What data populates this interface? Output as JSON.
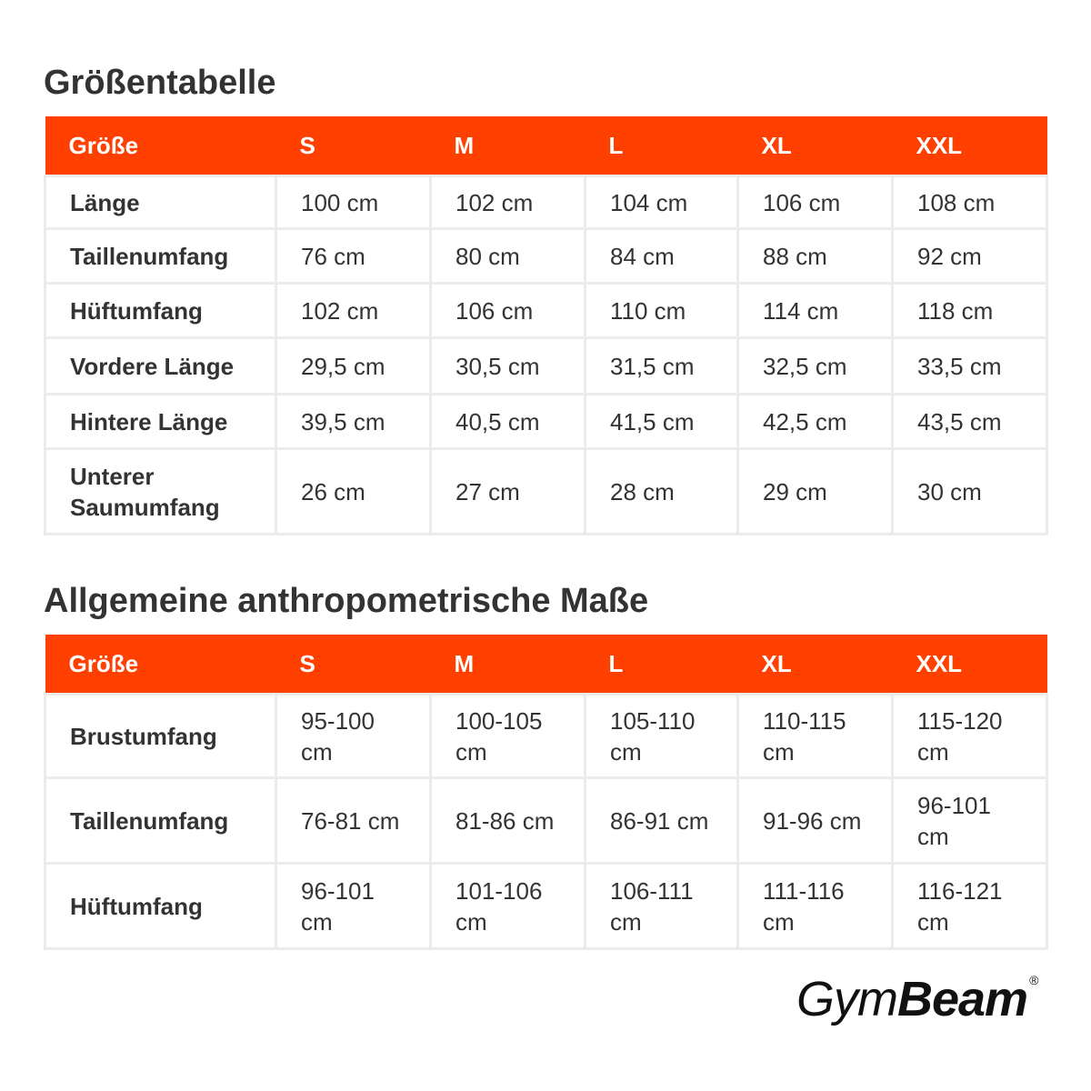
{
  "sections": [
    {
      "title": "Größentabelle",
      "header": [
        "Größe",
        "S",
        "M",
        "L",
        "XL",
        "XXL"
      ],
      "rows": [
        [
          "Länge",
          "100 cm",
          "102 cm",
          "104 cm",
          "106 cm",
          "108 cm"
        ],
        [
          "Taillenumfang",
          "76 cm",
          "80 cm",
          "84 cm",
          "88 cm",
          "92 cm"
        ],
        [
          "Hüftumfang",
          "102 cm",
          "106 cm",
          "110 cm",
          "114 cm",
          "118 cm"
        ],
        [
          "Vordere Länge",
          "29,5 cm",
          "30,5 cm",
          "31,5 cm",
          "32,5 cm",
          "33,5 cm"
        ],
        [
          "Hintere Länge",
          "39,5 cm",
          "40,5 cm",
          "41,5 cm",
          "42,5 cm",
          "43,5 cm"
        ],
        [
          "Unterer Saumumfang",
          "26 cm",
          "27 cm",
          "28 cm",
          "29 cm",
          "30 cm"
        ]
      ]
    },
    {
      "title": "Allgemeine anthropometrische Maße",
      "header": [
        "Größe",
        "S",
        "M",
        "L",
        "XL",
        "XXL"
      ],
      "rows": [
        [
          "Brustumfang",
          "95-100 cm",
          "100-105 cm",
          "105-110 cm",
          "110-115 cm",
          "115-120 cm"
        ],
        [
          "Taillenumfang",
          "76-81 cm",
          "81-86 cm",
          "86-91 cm",
          "91-96 cm",
          "96-101 cm"
        ],
        [
          "Hüftumfang",
          "96-101 cm",
          "101-106 cm",
          "106-111 cm",
          "111-116 cm",
          "116-121 cm"
        ]
      ]
    }
  ],
  "logo": {
    "light": "Gym",
    "bold": "Beam",
    "mark": "®"
  }
}
